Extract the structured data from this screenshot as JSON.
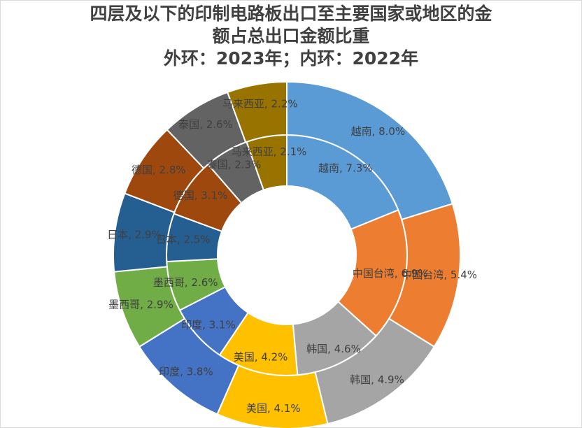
{
  "chart_data": {
    "type": "pie",
    "subtype": "doughnut",
    "title_lines": [
      "四层及以下的印制电路板出口至主要国家或地区的金",
      "额占总出口金额比重",
      "外环：2023年；内环：2022年"
    ],
    "series": [
      {
        "ring": "outer",
        "categories": [
          "越南",
          "中国台湾",
          "韩国",
          "美国",
          "印度",
          "墨西哥",
          "日本",
          "德国",
          "泰国",
          "马来西亚"
        ],
        "values": [
          8.0,
          5.4,
          4.9,
          4.1,
          3.8,
          2.9,
          2.9,
          2.8,
          2.6,
          2.2
        ],
        "labels": [
          "越南, 8.0%",
          "中国台湾, 5.4%",
          "韩国, 4.9%",
          "美国, 4.1%",
          "印度, 3.8%",
          "墨西哥, 2.9%",
          "日本, 2.9%",
          "德国, 2.8%",
          "泰国, 2.6%",
          "马来西亚, 2.2%"
        ]
      },
      {
        "ring": "inner",
        "categories": [
          "越南",
          "中国台湾",
          "韩国",
          "美国",
          "印度",
          "墨西哥",
          "日本",
          "德国",
          "泰国",
          "马来西亚"
        ],
        "values": [
          7.3,
          6.9,
          4.6,
          4.2,
          3.1,
          2.6,
          2.5,
          3.1,
          2.3,
          2.1
        ],
        "labels": [
          "越南, 7.3%",
          "中国台湾, 6.9%",
          "韩国, 4.6%",
          "美国, 4.2%",
          "印度, 3.1%",
          "墨西哥, 2.6%",
          "日本, 2.5%",
          "德国, 3.1%",
          "泰国, 2.3%",
          "马来西亚, 2.1%"
        ]
      }
    ],
    "colors": [
      "#5b9bd5",
      "#ed7d31",
      "#a5a5a5",
      "#ffc000",
      "#4472c4",
      "#70ad47",
      "#255e91",
      "#9e480e",
      "#636363",
      "#997300"
    ],
    "start_angle": "top, clockwise",
    "legend": "none"
  }
}
